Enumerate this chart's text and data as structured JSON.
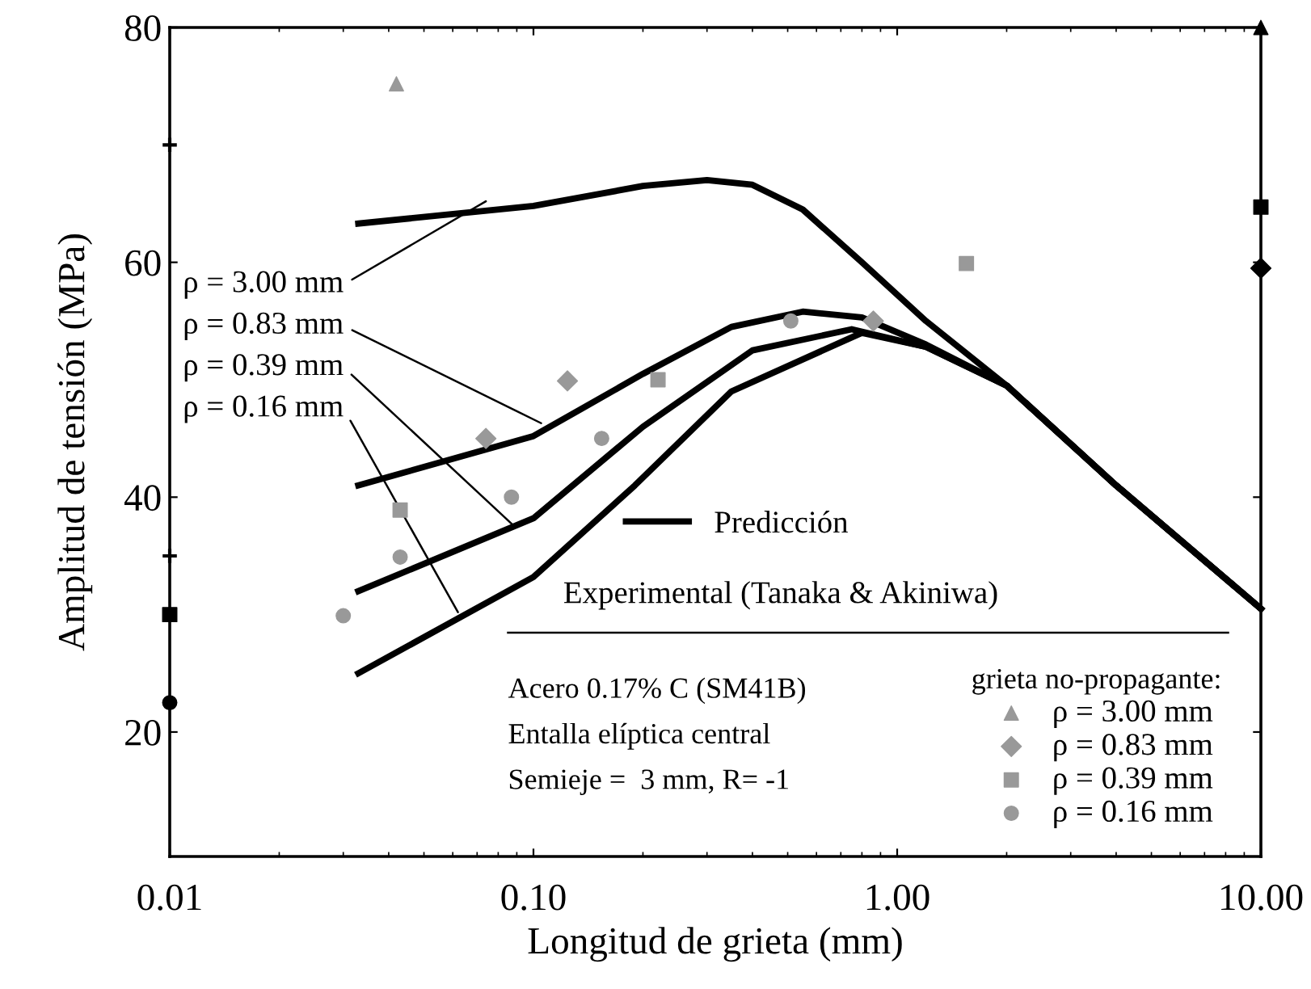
{
  "chart_data": {
    "type": "line",
    "xlabel": "Longitud de grieta (mm)",
    "ylabel": "Amplitud de tensión (MPa)",
    "log": "x",
    "xlim": [
      0.01,
      10
    ],
    "xticks": [
      {
        "value": 0.01,
        "label": "0.01"
      },
      {
        "value": 0.1,
        "label": "0.10"
      },
      {
        "value": 1,
        "label": "1.00"
      },
      {
        "value": 10,
        "label": "10.00"
      }
    ],
    "ylim": [
      9.4,
      80
    ],
    "yticks": [
      20,
      40,
      60,
      80
    ],
    "grid": false,
    "legend": "bottom right",
    "legend_title": "grieta no-propagante:",
    "line_style": "solid",
    "series": [
      {
        "name": "Predicción",
        "color": "#000000",
        "marker": "none",
        "x": [
          0.033,
          0.1,
          0.2,
          0.3,
          0.4,
          0.55,
          0.8,
          1.2,
          2,
          4,
          10
        ],
        "values": [
          63.3,
          64.8,
          66.5,
          67,
          66.6,
          64.5,
          60,
          55,
          49.5,
          41,
          30.5
        ]
      },
      {
        "color": "#000000",
        "marker": "none",
        "x": [
          0.033,
          0.1,
          0.2,
          0.35,
          0.55,
          0.8,
          1.2,
          2,
          4,
          10
        ],
        "values": [
          41,
          45.2,
          50.5,
          54.5,
          55.8,
          55.3,
          53,
          49.5,
          41,
          30.5
        ]
      },
      {
        "color": "#000000",
        "marker": "none",
        "x": [
          0.033,
          0.1,
          0.2,
          0.4,
          0.75,
          1.2,
          2,
          4,
          10
        ],
        "values": [
          32,
          38.2,
          46,
          52.5,
          54.3,
          52.8,
          49.5,
          41,
          30.5
        ]
      },
      {
        "color": "#000000",
        "marker": "none",
        "x": [
          0.033,
          0.1,
          0.19,
          0.35,
          0.8,
          1.2,
          2,
          4,
          10
        ],
        "values": [
          25,
          33.2,
          41,
          49,
          54,
          52.8,
          49.5,
          41,
          30.5
        ]
      },
      {
        "name": "ρ = 3.00 mm",
        "type": "scatter",
        "color": "#999999",
        "marker": "triangle",
        "x": [
          0.042
        ],
        "values": [
          75.2
        ]
      },
      {
        "name": "ρ = 0.83 mm",
        "type": "scatter",
        "color": "#999999",
        "marker": "diamond",
        "x": [
          0.074,
          0.124,
          0.86
        ],
        "values": [
          45,
          49.9,
          55
        ]
      },
      {
        "name": "ρ = 0.39 mm",
        "type": "scatter",
        "color": "#999999",
        "marker": "square",
        "x": [
          0.043,
          0.22,
          1.55
        ],
        "values": [
          38.9,
          50,
          59.9
        ]
      },
      {
        "name": "ρ = 0.16 mm",
        "type": "scatter",
        "color": "#999999",
        "marker": "circle",
        "x": [
          0.03,
          0.043,
          0.087,
          0.154,
          0.51
        ],
        "values": [
          29.9,
          34.9,
          40,
          45,
          55
        ]
      },
      {
        "type": "scatter",
        "color": "#000000",
        "marker": "cross",
        "x": [
          0.01,
          0.01
        ],
        "values": [
          70,
          35
        ]
      },
      {
        "type": "scatter",
        "color": "#000000",
        "marker": "square",
        "x": [
          0.01
        ],
        "values": [
          30
        ]
      },
      {
        "type": "scatter",
        "color": "#000000",
        "marker": "circle",
        "x": [
          0.01
        ],
        "values": [
          22.5
        ]
      },
      {
        "type": "scatter",
        "color": "#000000",
        "marker": "triangle",
        "x": [
          10
        ],
        "values": [
          80
        ]
      },
      {
        "type": "scatter",
        "color": "#000000",
        "marker": "square",
        "x": [
          10
        ],
        "values": [
          64.7
        ]
      },
      {
        "type": "scatter",
        "color": "#000000",
        "marker": "diamond",
        "x": [
          10
        ],
        "values": [
          59.5
        ]
      }
    ],
    "annotations": [
      {
        "text": "ρ = 3.00 mm",
        "x": 0.074,
        "y": 65.2
      },
      {
        "text": "ρ = 0.83 mm",
        "x": 0.105,
        "y": 46.3
      },
      {
        "text": "ρ = 0.39 mm",
        "x": 0.088,
        "y": 37.6
      },
      {
        "text": "ρ = 0.16 mm",
        "x": 0.062,
        "y": 30.2
      },
      "Experimental (Tanaka & Akiniwa)",
      "Acero 0.17% C (SM41B)",
      "Entalla elíptica central",
      "Semieje =  3 mm, R= -1"
    ]
  }
}
